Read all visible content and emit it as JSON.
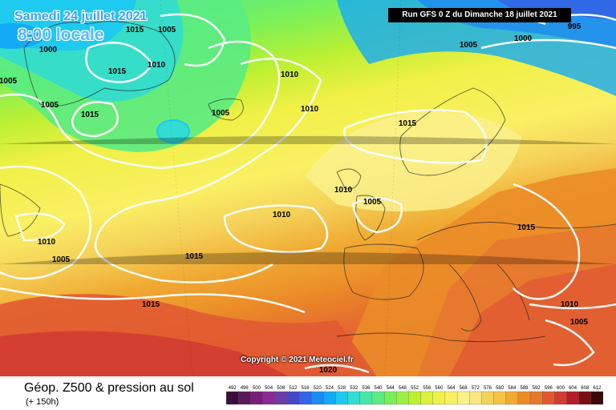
{
  "header": {
    "date": "Samedi 24 juillet 2021",
    "time": "8:00 locale",
    "run_info": "Run GFS 0 Z du Dimanche 18 juillet 2021"
  },
  "footer": {
    "title": "Géop. Z500 & pression au sol",
    "lead_time": "(+ 150h)",
    "copyright": "Copyright © 2021 Meteociel.fr"
  },
  "legend": {
    "values": [
      "492",
      "496",
      "500",
      "504",
      "508",
      "512",
      "516",
      "520",
      "524",
      "528",
      "532",
      "536",
      "540",
      "544",
      "548",
      "552",
      "556",
      "560",
      "564",
      "568",
      "572",
      "576",
      "580",
      "584",
      "588",
      "592",
      "596",
      "600",
      "604",
      "608",
      "612"
    ],
    "colors": [
      "#3b0f3b",
      "#5a1a5a",
      "#781e78",
      "#8c2896",
      "#6a3ca8",
      "#4646c8",
      "#3264e6",
      "#1e8cf0",
      "#14aaf5",
      "#1ec8f0",
      "#32dcd2",
      "#46e6aa",
      "#5aeb82",
      "#78f05a",
      "#9bf046",
      "#bef032",
      "#dcf03c",
      "#f0f046",
      "#faf064",
      "#faf08c",
      "#fae682",
      "#f5d25a",
      "#f5c346",
      "#f0aa32",
      "#eb8c28",
      "#e6782d",
      "#e15a32",
      "#d23c32",
      "#b41e28",
      "#780f14",
      "#3c0a0a"
    ]
  },
  "map": {
    "isobar_labels": [
      "1015",
      "1005",
      "1000",
      "1015",
      "1010",
      "1005",
      "1015",
      "1005",
      "1005",
      "1010",
      "1015",
      "1010",
      "1005",
      "1010",
      "1015",
      "1005",
      "1010",
      "1015",
      "1015",
      "1020",
      "1010",
      "1005",
      "1010",
      "995",
      "1000",
      "1005"
    ]
  }
}
